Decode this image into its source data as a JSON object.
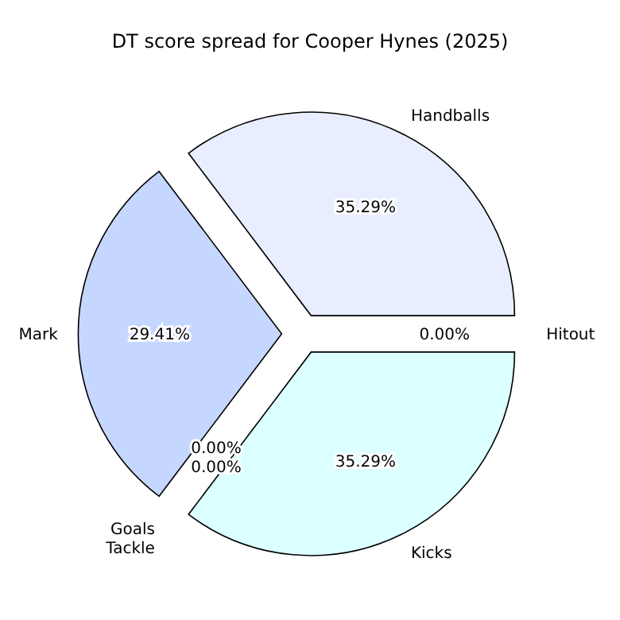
{
  "chart_data": {
    "type": "pie",
    "title": "DT score spread for Cooper Hynes (2025)",
    "categories": [
      "Handballs",
      "Mark",
      "Goals",
      "Tackle",
      "Kicks",
      "Hitout"
    ],
    "values": [
      35.29,
      29.41,
      0.0,
      0.0,
      35.29,
      0.0
    ],
    "colors": [
      "#e8eeff",
      "#c6d7ff",
      null,
      null,
      "#dcffff",
      null
    ],
    "value_labels": [
      "35.29%",
      "29.41%",
      "0.00%",
      "0.00%",
      "35.29%",
      "0.00%"
    ]
  }
}
